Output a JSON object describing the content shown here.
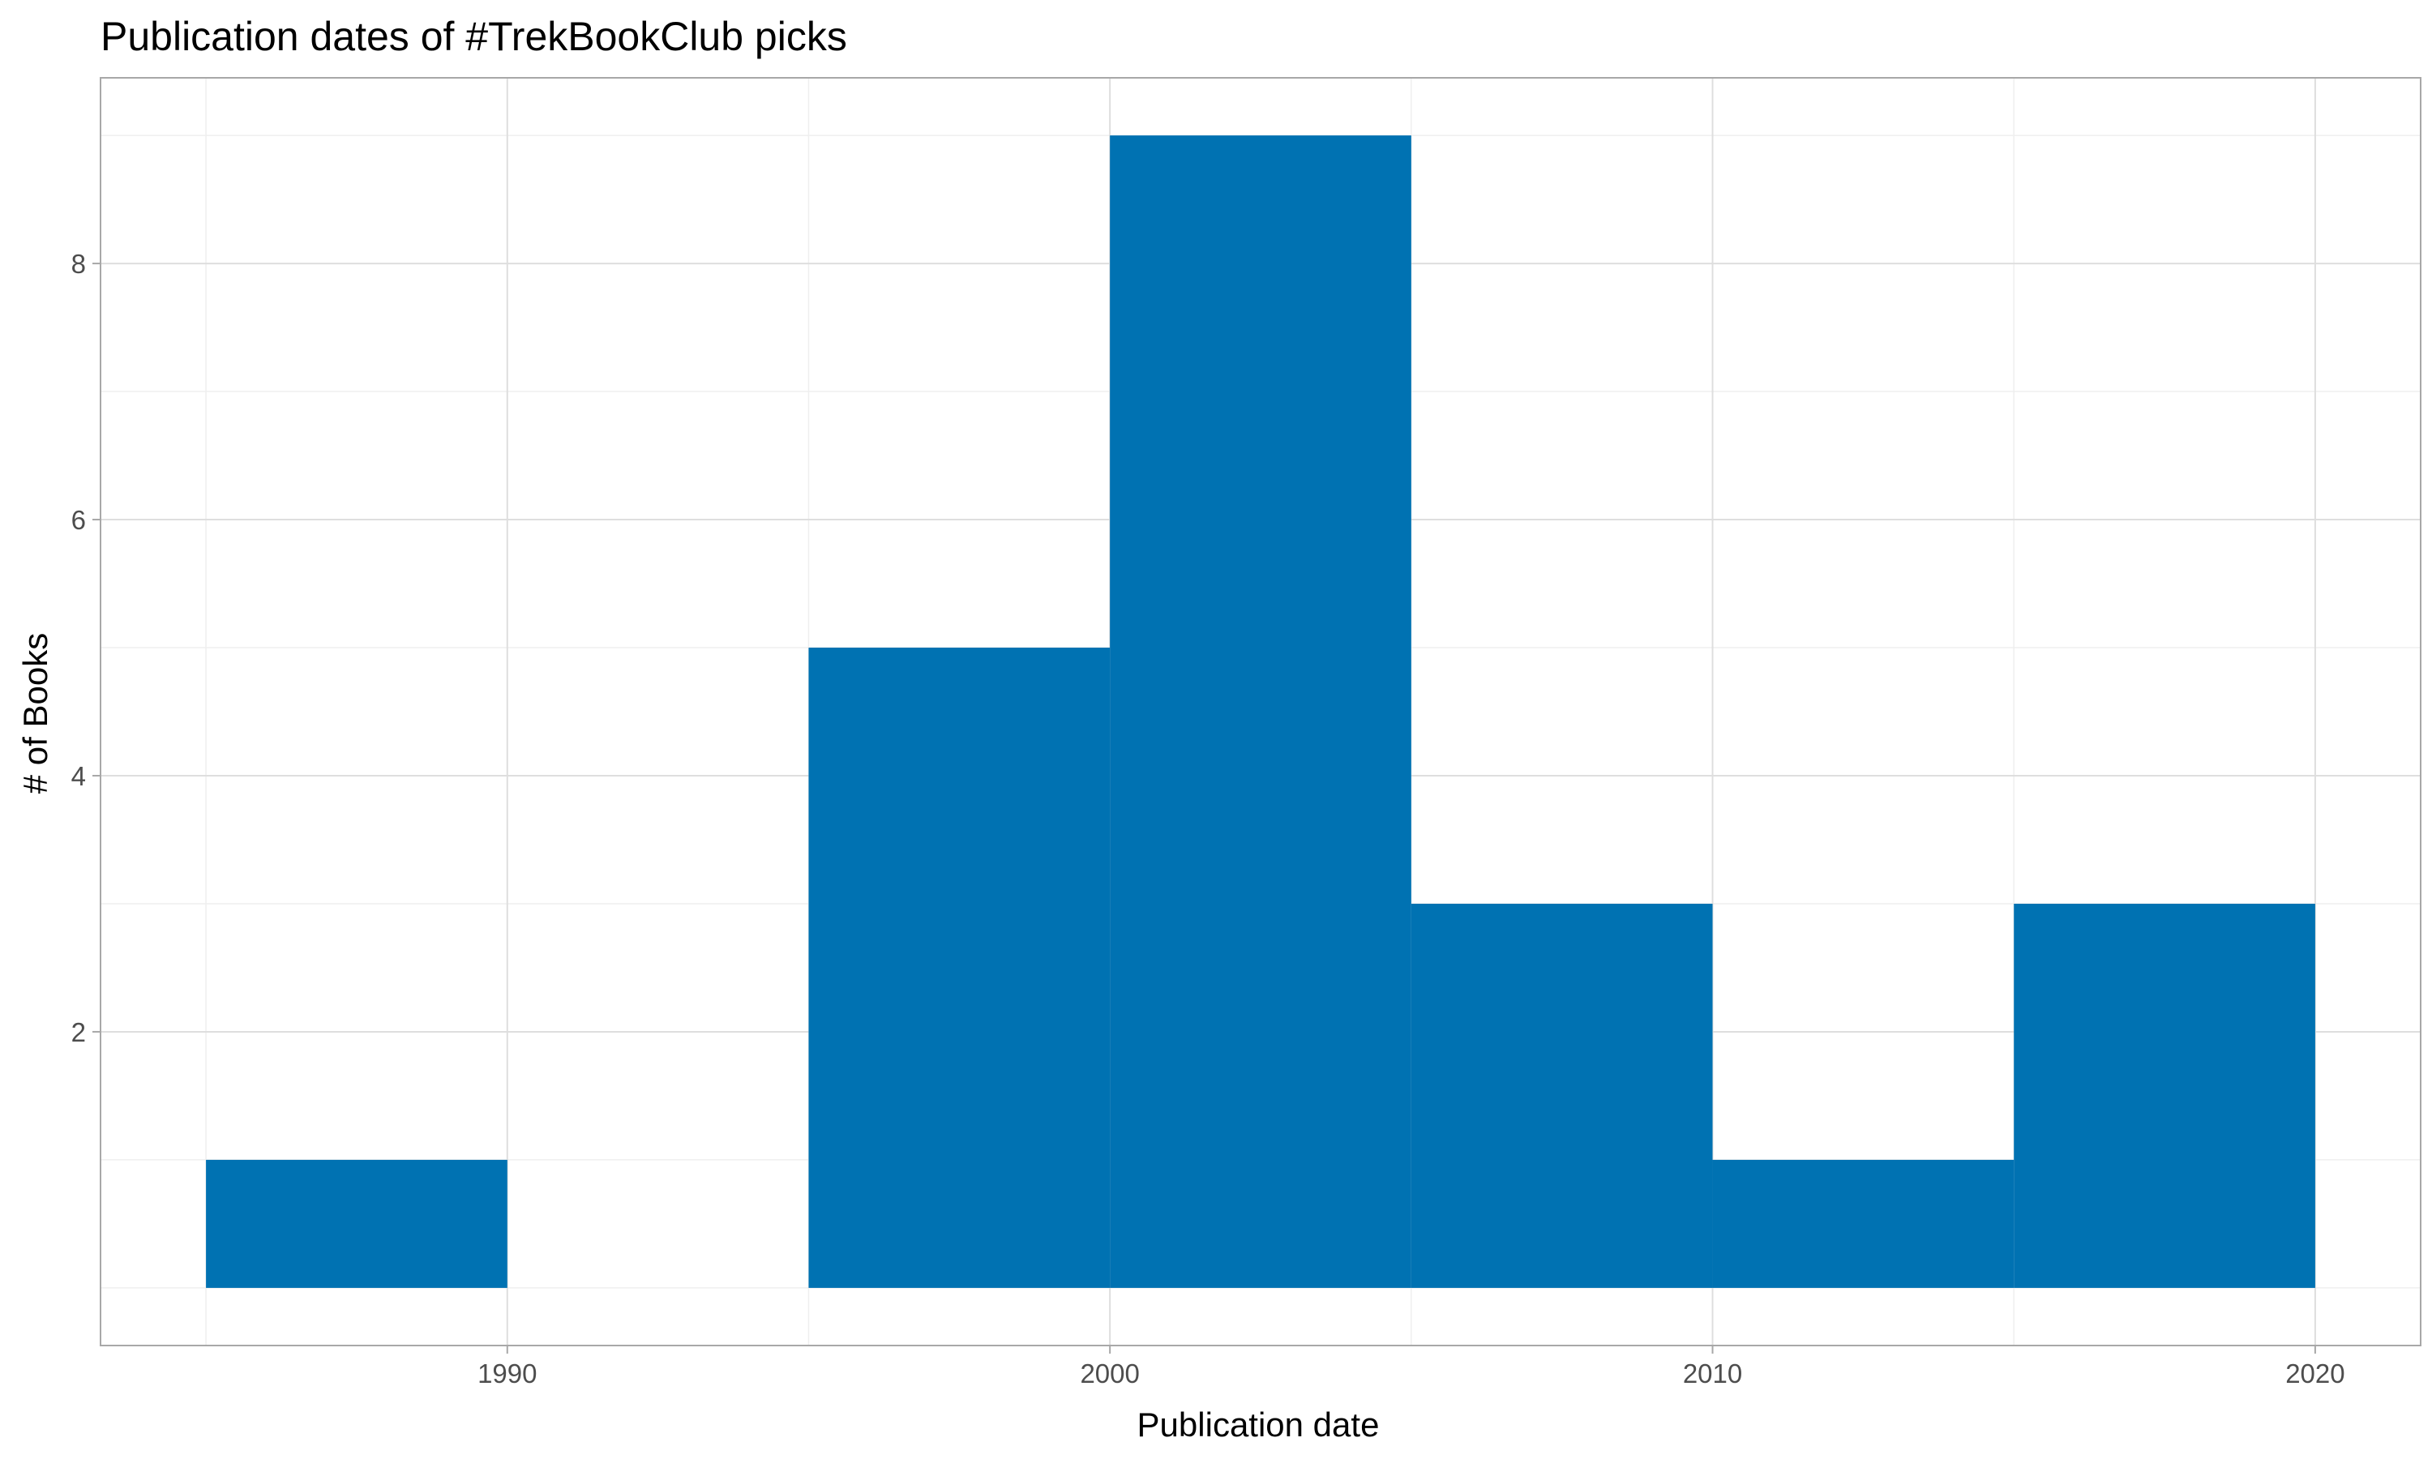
{
  "chart_data": {
    "type": "bar",
    "subtype": "histogram",
    "title": "Publication dates of #TrekBookClub picks",
    "xlabel": "Publication date",
    "ylabel": "# of Books",
    "bin_width": 5,
    "bins": [
      {
        "start": 1985,
        "end": 1990,
        "count": 1
      },
      {
        "start": 1990,
        "end": 1995,
        "count": 0
      },
      {
        "start": 1995,
        "end": 2000,
        "count": 5
      },
      {
        "start": 2000,
        "end": 2005,
        "count": 9
      },
      {
        "start": 2005,
        "end": 2010,
        "count": 3
      },
      {
        "start": 2010,
        "end": 2015,
        "count": 1
      },
      {
        "start": 2015,
        "end": 2020,
        "count": 3
      }
    ],
    "xlim": [
      1983.25,
      2021.75
    ],
    "ylim": [
      -0.45,
      9.45
    ],
    "x_ticks": [
      1990,
      2000,
      2010,
      2020
    ],
    "x_tick_labels": [
      "1990",
      "2000",
      "2010",
      "2020"
    ],
    "y_ticks": [
      2,
      4,
      6,
      8
    ],
    "y_tick_labels": [
      "2",
      "4",
      "6",
      "8"
    ],
    "y_minor_ticks": [
      0,
      1,
      3,
      5,
      7,
      9
    ],
    "x_minor_ticks": [
      1985,
      1995,
      2005,
      2015
    ],
    "grid": true,
    "bar_color": "#0072B2"
  }
}
